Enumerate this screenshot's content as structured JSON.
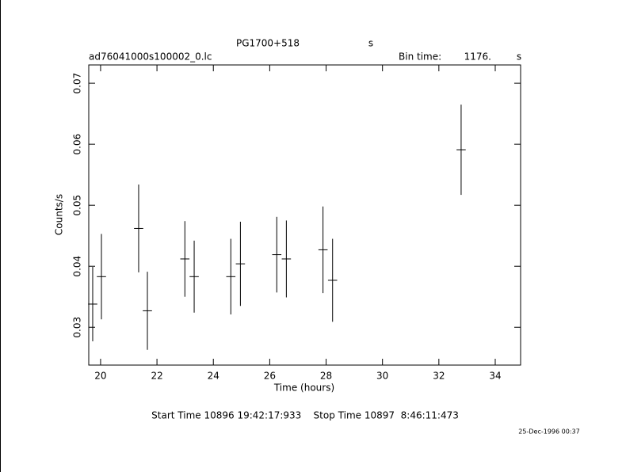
{
  "chart_data": {
    "type": "errorbar",
    "title": "PG1700+518",
    "title_unit": "s",
    "file_name": "ad76041000s100002_0.lc",
    "bin_label": "Bin time:",
    "bin_value": "1176.",
    "bin_unit": "s",
    "xlabel": "Time (hours)",
    "ylabel": "Counts/s",
    "footer": "Start Time 10896 19:42:17:933    Stop Time 10897  8:46:11:473",
    "timestamp": "25-Dec-1996 00:37",
    "color": "#000000",
    "x": [
      19.72,
      20.03,
      21.35,
      21.66,
      22.99,
      23.32,
      24.62,
      24.96,
      26.25,
      26.59,
      27.89,
      28.23,
      32.79
    ],
    "values": [
      0.0338,
      0.0383,
      0.0462,
      0.0327,
      0.0412,
      0.0383,
      0.0383,
      0.0404,
      0.0419,
      0.0412,
      0.0427,
      0.0377,
      0.0591
    ],
    "errors": [
      0.0061,
      0.007,
      0.0072,
      0.0064,
      0.0062,
      0.0059,
      0.0062,
      0.0069,
      0.0062,
      0.0063,
      0.0071,
      0.0068,
      0.0074
    ],
    "xerr": 0.163,
    "xlim": [
      19.58,
      34.9
    ],
    "ylim": [
      0.0238,
      0.073
    ],
    "xticks": [
      20,
      22,
      24,
      26,
      28,
      30,
      32,
      34
    ],
    "yticks": [
      0.03,
      0.04,
      0.05,
      0.06,
      0.07
    ]
  }
}
